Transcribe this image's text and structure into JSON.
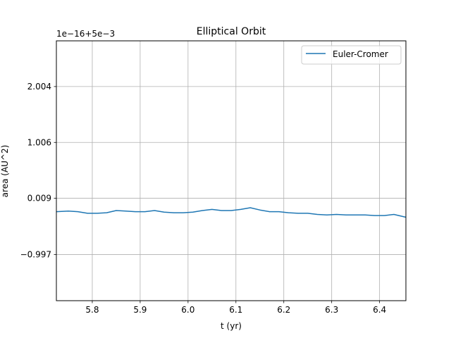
{
  "chart_data": {
    "type": "line",
    "title": "Elliptical Orbit",
    "xlabel": "t (yr)",
    "ylabel": "area (AU^2)",
    "offset_text": "1e−16+5e−3",
    "xlim": [
      5.725,
      6.455
    ],
    "ylim": [
      -1.82,
      2.82
    ],
    "xticks": [
      5.8,
      5.9,
      6.0,
      6.1,
      6.2,
      6.3,
      6.4
    ],
    "xtick_labels": [
      "5.8",
      "5.9",
      "6.0",
      "6.1",
      "6.2",
      "6.3",
      "6.4"
    ],
    "yticks": [
      2.004,
      1.006,
      0.009,
      -0.997
    ],
    "ytick_labels": [
      "2.004",
      "1.006",
      "0.009",
      "−0.997"
    ],
    "grid": true,
    "legend_position": "top-right",
    "series": [
      {
        "name": "Euler-Cromer",
        "color": "#1f77b4",
        "x": [
          5.725,
          5.75,
          5.77,
          5.79,
          5.81,
          5.83,
          5.85,
          5.87,
          5.89,
          5.91,
          5.93,
          5.95,
          5.97,
          5.99,
          6.01,
          6.03,
          6.05,
          6.07,
          6.09,
          6.11,
          6.13,
          6.15,
          6.17,
          6.19,
          6.21,
          6.23,
          6.25,
          6.27,
          6.29,
          6.31,
          6.33,
          6.35,
          6.37,
          6.39,
          6.41,
          6.43,
          6.455
        ],
        "y": [
          -0.23,
          -0.22,
          -0.23,
          -0.26,
          -0.26,
          -0.25,
          -0.21,
          -0.22,
          -0.23,
          -0.23,
          -0.21,
          -0.24,
          -0.25,
          -0.25,
          -0.24,
          -0.21,
          -0.19,
          -0.21,
          -0.21,
          -0.19,
          -0.16,
          -0.2,
          -0.23,
          -0.23,
          -0.25,
          -0.26,
          -0.26,
          -0.28,
          -0.29,
          -0.28,
          -0.29,
          -0.29,
          -0.29,
          -0.3,
          -0.3,
          -0.28,
          -0.33
        ]
      }
    ]
  }
}
